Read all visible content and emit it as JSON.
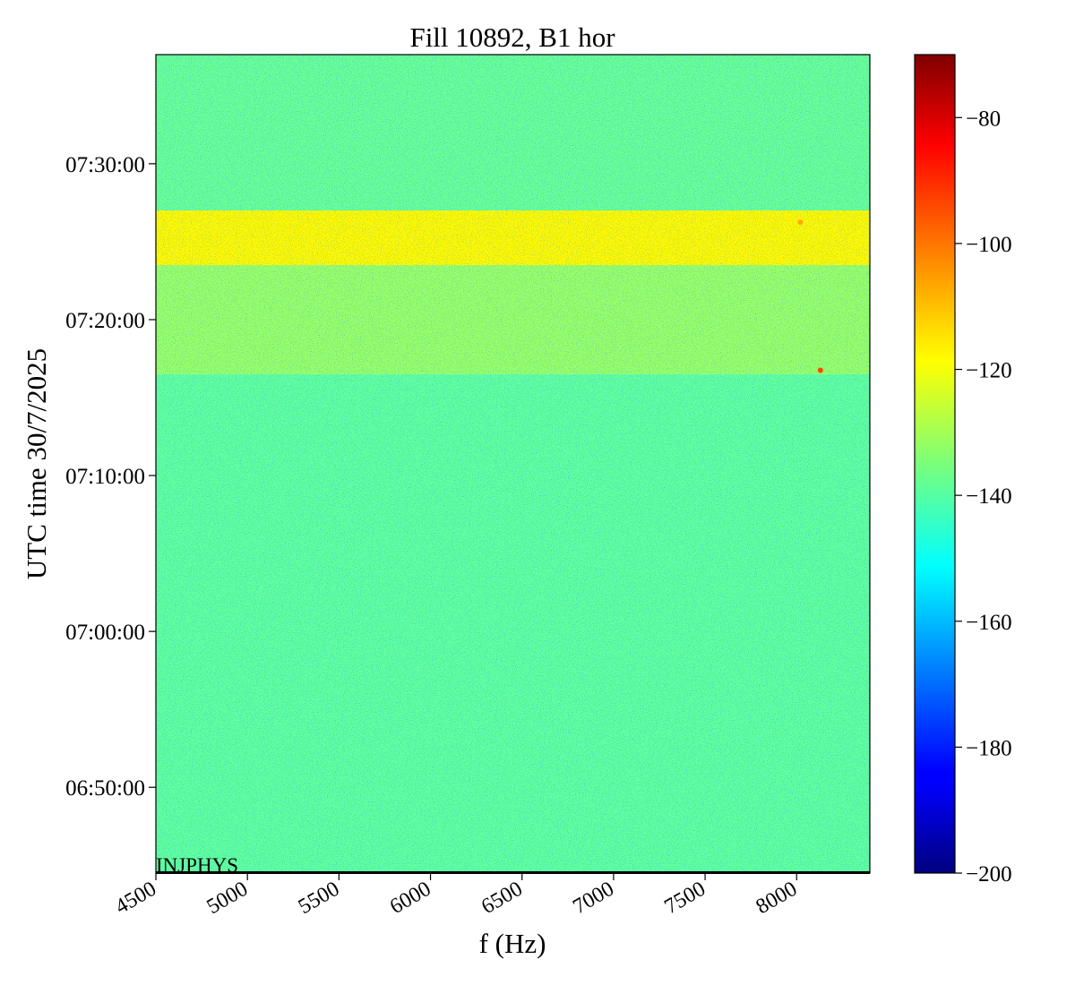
{
  "chart_data": {
    "type": "heatmap",
    "title": "Fill 10892, B1 hor",
    "xlabel": "f (Hz)",
    "ylabel": "UTC time 30/7/2025",
    "annotation": "INJPHYS",
    "xlim": [
      4500,
      8400
    ],
    "x_ticks": [
      4500,
      5000,
      5500,
      6000,
      6500,
      7000,
      7500,
      8000
    ],
    "x_tick_labels": [
      "4500",
      "5000",
      "5500",
      "6000",
      "6500",
      "7000",
      "7500",
      "8000"
    ],
    "y_range_minutes": [
      404.5,
      457
    ],
    "y_ticks": [
      {
        "label": "06:50:00",
        "value": "06:50:00"
      },
      {
        "label": "07:00:00",
        "value": "07:00:00"
      },
      {
        "label": "07:10:00",
        "value": "07:10:00"
      },
      {
        "label": "07:20:00",
        "value": "07:20:00"
      },
      {
        "label": "07:30:00",
        "value": "07:30:00"
      }
    ],
    "colorbar": {
      "colormap": "jet",
      "range": [
        -200,
        -70
      ],
      "ticks": [
        -80,
        -100,
        -120,
        -140,
        -160,
        -180,
        -200
      ],
      "tick_labels": [
        "−80",
        "−100",
        "−120",
        "−140",
        "−160",
        "−180",
        "−200"
      ]
    },
    "regions": [
      {
        "time_start": "06:44:30",
        "time_end": "07:16:30",
        "mean_value": -139
      },
      {
        "time_start": "07:16:30",
        "time_end": "07:23:30",
        "mean_value": -132
      },
      {
        "time_start": "07:23:30",
        "time_end": "07:27:00",
        "mean_value": -118
      },
      {
        "time_start": "07:27:00",
        "time_end": "07:37:00",
        "mean_value": -138
      }
    ],
    "hotspots": [
      {
        "f": 8130,
        "time": "07:16:45",
        "value": -95
      },
      {
        "f": 8020,
        "time": "07:26:15",
        "value": -108
      }
    ],
    "grid": false
  }
}
